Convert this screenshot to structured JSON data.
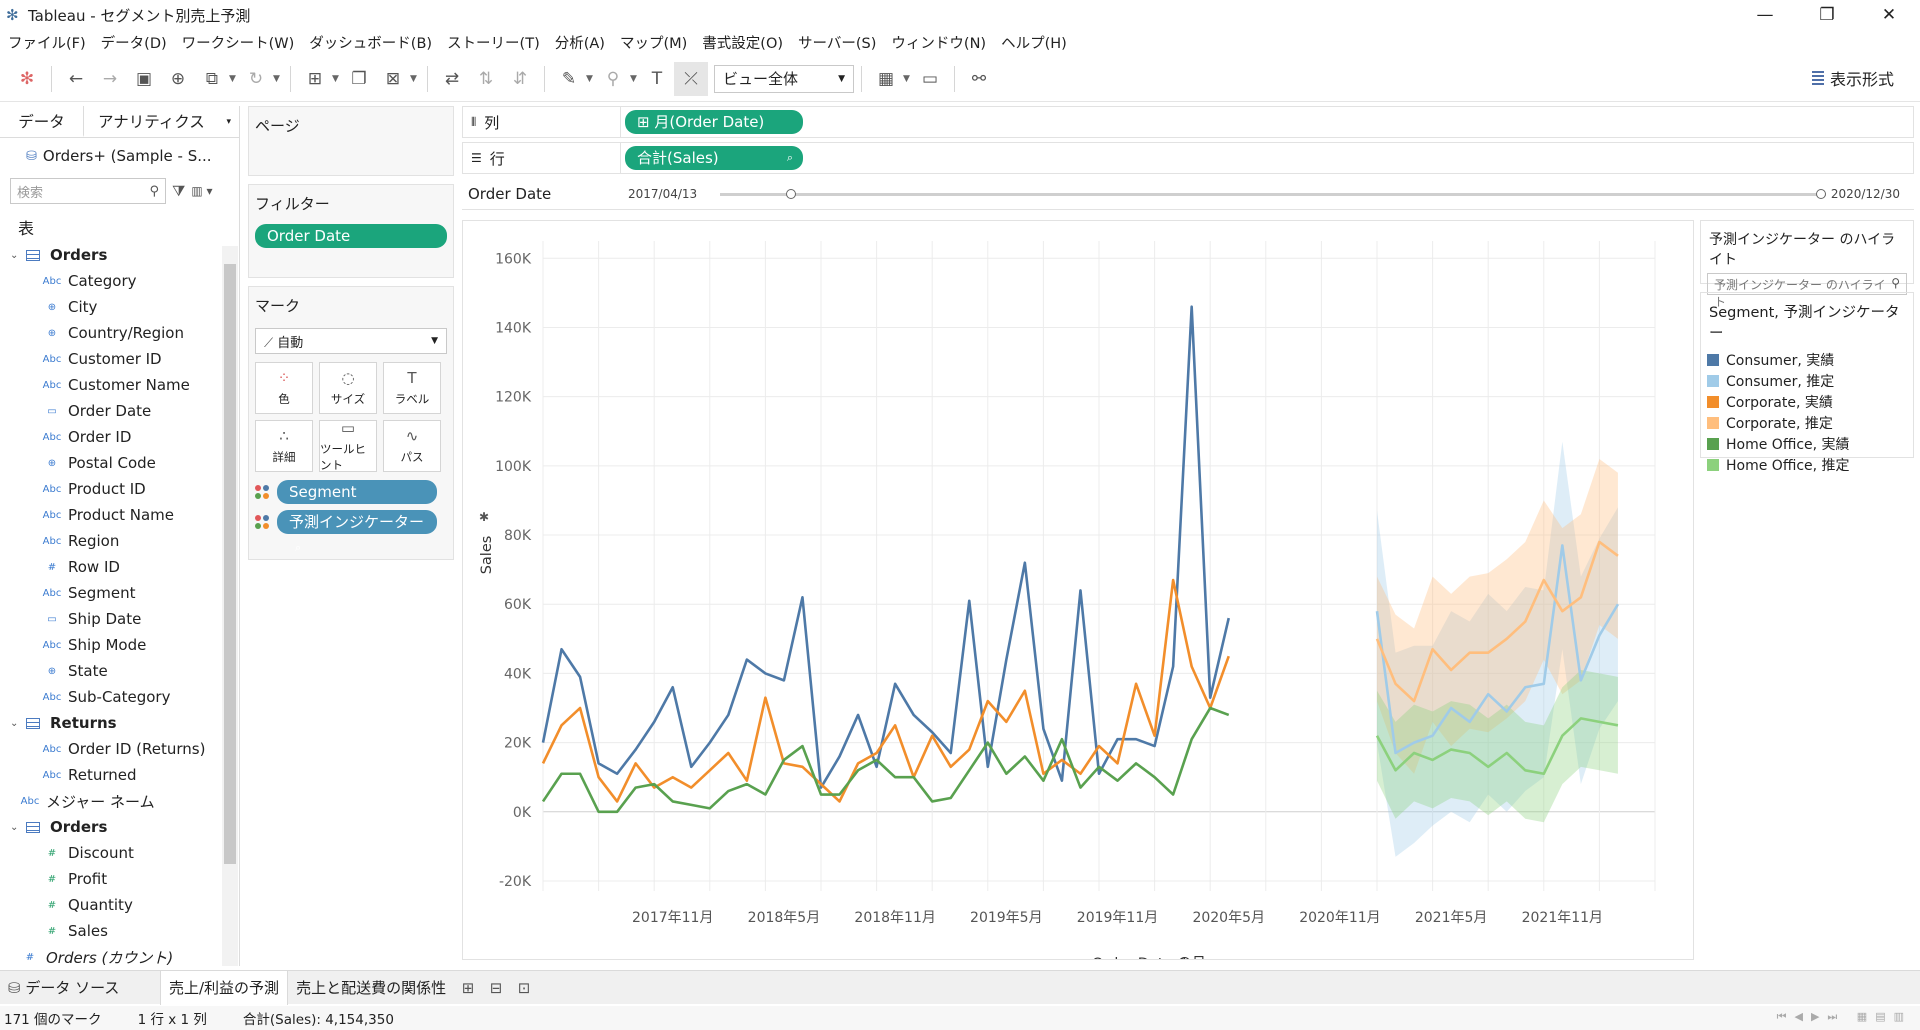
{
  "window": {
    "title": "Tableau - セグメント別売上予測",
    "min": "—",
    "max": "❐",
    "close": "✕"
  },
  "menu": [
    "ファイル(F)",
    "データ(D)",
    "ワークシート(W)",
    "ダッシュボード(B)",
    "ストーリー(T)",
    "分析(A)",
    "マップ(M)",
    "書式設定(O)",
    "サーバー(S)",
    "ウィンドウ(N)",
    "ヘルプ(H)"
  ],
  "toolbar": {
    "fit": "ビュー全体",
    "show_me": "表示形式"
  },
  "data_pane": {
    "tab_data": "データ",
    "tab_analytics": "アナリティクス",
    "datasource": "Orders+ (Sample - S...",
    "search_placeholder": "検索",
    "section_tables": "表",
    "rows": [
      {
        "kind": "table",
        "type": "",
        "name": "Orders"
      },
      {
        "kind": "dim",
        "type": "Abc",
        "name": "Category"
      },
      {
        "kind": "dim",
        "type": "⊕",
        "name": "City"
      },
      {
        "kind": "dim",
        "type": "⊕",
        "name": "Country/Region"
      },
      {
        "kind": "dim",
        "type": "Abc",
        "name": "Customer ID"
      },
      {
        "kind": "dim",
        "type": "Abc",
        "name": "Customer Name"
      },
      {
        "kind": "dim",
        "type": "▭",
        "name": "Order Date"
      },
      {
        "kind": "dim",
        "type": "Abc",
        "name": "Order ID"
      },
      {
        "kind": "dim",
        "type": "⊕",
        "name": "Postal Code"
      },
      {
        "kind": "dim",
        "type": "Abc",
        "name": "Product ID"
      },
      {
        "kind": "dim",
        "type": "Abc",
        "name": "Product Name"
      },
      {
        "kind": "dim",
        "type": "Abc",
        "name": "Region"
      },
      {
        "kind": "dim",
        "type": "#",
        "name": "Row ID"
      },
      {
        "kind": "dim",
        "type": "Abc",
        "name": "Segment"
      },
      {
        "kind": "dim",
        "type": "▭",
        "name": "Ship Date"
      },
      {
        "kind": "dim",
        "type": "Abc",
        "name": "Ship Mode"
      },
      {
        "kind": "dim",
        "type": "⊕",
        "name": "State"
      },
      {
        "kind": "dim",
        "type": "Abc",
        "name": "Sub-Category"
      },
      {
        "kind": "table",
        "type": "",
        "name": "Returns"
      },
      {
        "kind": "dim",
        "type": "Abc",
        "name": "Order ID (Returns)"
      },
      {
        "kind": "dim",
        "type": "Abc",
        "name": "Returned"
      },
      {
        "kind": "plain",
        "type": "Abc",
        "name": "メジャー ネーム"
      },
      {
        "kind": "table",
        "type": "",
        "name": "Orders"
      },
      {
        "kind": "measure",
        "type": "#",
        "name": "Discount"
      },
      {
        "kind": "measure",
        "type": "#",
        "name": "Profit"
      },
      {
        "kind": "measure",
        "type": "#",
        "name": "Quantity"
      },
      {
        "kind": "measure",
        "type": "#",
        "name": "Sales"
      },
      {
        "kind": "plain",
        "type": "#",
        "name": "Orders (カウント)"
      }
    ]
  },
  "cards": {
    "pages": "ページ",
    "filters": "フィルター",
    "filter_pill": "Order Date",
    "marks": "マーク",
    "mark_type": "自動",
    "mark_buttons": [
      {
        "icon": "⁘",
        "label": "色"
      },
      {
        "icon": "◌",
        "label": "サイズ"
      },
      {
        "icon": "T",
        "label": "ラベル"
      },
      {
        "icon": "∴",
        "label": "詳細"
      },
      {
        "icon": "▭",
        "label": "ツールヒント"
      },
      {
        "icon": "∿",
        "label": "パス"
      }
    ],
    "mark_pills": [
      "Segment",
      "予測インジケーター"
    ]
  },
  "shelves": {
    "columns_label": "列",
    "columns_pill": "⊞ 月(Order Date)",
    "rows_label": "行",
    "rows_pill": "合計(Sales)",
    "range_label": "Order Date",
    "range_start": "2017/04/13",
    "range_end": "2020/12/30"
  },
  "highlight": {
    "title": "予測インジケーター のハイライト",
    "placeholder": "予測インジケーター のハイライト"
  },
  "legend": {
    "title": "Segment, 予測インジケーター",
    "items": [
      {
        "label": "Consumer, 実績",
        "color": "#4e79a7"
      },
      {
        "label": "Consumer, 推定",
        "color": "#a0cbe8"
      },
      {
        "label": "Corporate, 実績",
        "color": "#f28e2b"
      },
      {
        "label": "Corporate, 推定",
        "color": "#ffbe7d"
      },
      {
        "label": "Home Office, 実績",
        "color": "#59a14f"
      },
      {
        "label": "Home Office, 推定",
        "color": "#8cd17d"
      }
    ]
  },
  "sheet_tabs": {
    "datasource": "データ ソース",
    "sheets": [
      "売上/利益の予測",
      "売上と配送費の関係性"
    ]
  },
  "status": {
    "marks": "171 個のマーク",
    "dims": "1 行 x 1 列",
    "sum": "合計(Sales): 4,154,350"
  },
  "chart_data": {
    "type": "line",
    "xlabel": "Order Date の月",
    "ylabel": "Sales",
    "ylim": [
      -20000,
      165000
    ],
    "yticks": [
      -20000,
      0,
      20000,
      40000,
      60000,
      80000,
      100000,
      120000,
      140000,
      160000
    ],
    "ytick_labels": [
      "-20K",
      "0K",
      "20K",
      "40K",
      "60K",
      "80K",
      "100K",
      "120K",
      "140K",
      "160K"
    ],
    "x_start": "2017-04",
    "x_end": "2022-04",
    "xtick_labels": [
      {
        "month": "2017-11",
        "label": "2017年11月"
      },
      {
        "month": "2018-05",
        "label": "2018年5月"
      },
      {
        "month": "2018-11",
        "label": "2018年11月"
      },
      {
        "month": "2019-05",
        "label": "2019年5月"
      },
      {
        "month": "2019-11",
        "label": "2019年11月"
      },
      {
        "month": "2020-05",
        "label": "2020年5月"
      },
      {
        "month": "2020-11",
        "label": "2020年11月"
      },
      {
        "month": "2021-05",
        "label": "2021年5月"
      },
      {
        "month": "2021-11",
        "label": "2021年11月"
      }
    ],
    "actual_start": "2017-04",
    "forecast_start": "2021-01",
    "series": [
      {
        "name": "Consumer, 実績",
        "color": "#4e79a7",
        "values": [
          20000,
          47000,
          39000,
          14000,
          11000,
          18000,
          26000,
          36000,
          13000,
          20000,
          28000,
          44000,
          40000,
          38000,
          62000,
          7000,
          16000,
          28000,
          13000,
          37000,
          28000,
          23000,
          17000,
          61000,
          13000,
          44000,
          72000,
          24000,
          9000,
          64000,
          11000,
          21000,
          21000,
          19000,
          42000,
          146000,
          33000,
          56000
        ]
      },
      {
        "name": "Corporate, 実績",
        "color": "#f28e2b",
        "values": [
          14000,
          25000,
          30000,
          10000,
          3000,
          14000,
          7000,
          10000,
          7000,
          12000,
          17000,
          9000,
          33000,
          14000,
          13000,
          8000,
          3000,
          14000,
          17000,
          25000,
          10000,
          22000,
          13000,
          18000,
          32000,
          26000,
          35000,
          11000,
          15000,
          11000,
          19000,
          14000,
          37000,
          22000,
          67000,
          42000,
          30000,
          45000
        ]
      },
      {
        "name": "Home Office, 実績",
        "color": "#59a14f",
        "values": [
          3000,
          11000,
          11000,
          0,
          0,
          7000,
          8000,
          3000,
          2000,
          1000,
          6000,
          8000,
          5000,
          15000,
          19000,
          5000,
          5000,
          12000,
          15000,
          10000,
          10000,
          3000,
          4000,
          12000,
          20000,
          11000,
          16000,
          9000,
          21000,
          7000,
          13000,
          9000,
          14000,
          10000,
          5000,
          21000,
          30000,
          28000
        ]
      },
      {
        "name": "Consumer, 推定",
        "color": "#a0cbe8",
        "values": [
          58000,
          17000,
          20000,
          22000,
          30000,
          26000,
          34000,
          29000,
          36000,
          37000,
          77000,
          38000,
          51000,
          60000
        ],
        "lower": [
          20000,
          -13000,
          -9000,
          -4000,
          0,
          -3000,
          5000,
          0,
          6000,
          10000,
          47000,
          8000,
          24000,
          32000
        ],
        "upper": [
          87000,
          46000,
          48000,
          48000,
          58000,
          55000,
          63000,
          58000,
          65000,
          64000,
          107000,
          68000,
          79000,
          88000
        ]
      },
      {
        "name": "Corporate, 推定",
        "color": "#ffbe7d",
        "values": [
          50000,
          37000,
          32000,
          47000,
          41000,
          46000,
          46000,
          50000,
          55000,
          67000,
          58000,
          62000,
          78000,
          74000
        ],
        "lower": [
          32000,
          17000,
          11000,
          26000,
          19000,
          24000,
          23000,
          27000,
          32000,
          44000,
          34000,
          38000,
          54000,
          50000
        ],
        "upper": [
          68000,
          57000,
          53000,
          68000,
          63000,
          68000,
          69000,
          73000,
          78000,
          90000,
          82000,
          86000,
          102000,
          98000
        ]
      },
      {
        "name": "Home Office, 推定",
        "color": "#8cd17d",
        "values": [
          22000,
          12000,
          17000,
          15000,
          18000,
          17000,
          13000,
          17000,
          12000,
          11000,
          22000,
          27000,
          26000,
          25000
        ],
        "lower": [
          9000,
          -2000,
          3000,
          1000,
          4000,
          3000,
          -1000,
          3000,
          -2000,
          -3000,
          8000,
          13000,
          12000,
          11000
        ],
        "upper": [
          35000,
          26000,
          31000,
          29000,
          32000,
          31000,
          27000,
          31000,
          26000,
          25000,
          36000,
          41000,
          40000,
          39000
        ]
      }
    ]
  }
}
